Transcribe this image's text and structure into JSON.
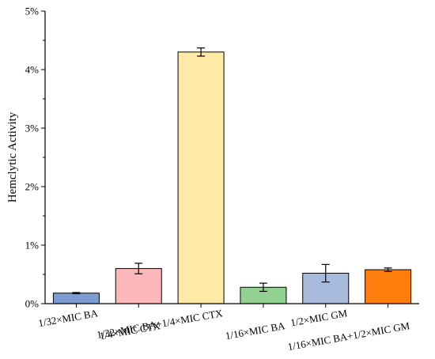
{
  "chart_data": {
    "type": "bar",
    "title": "",
    "xlabel": "",
    "ylabel": "Hemclytic Activity",
    "ylim": [
      0,
      5
    ],
    "yticks": [
      0,
      1,
      2,
      3,
      4,
      5
    ],
    "ytick_labels": [
      "0%",
      "1%",
      "2%",
      "3%",
      "4%",
      "5%"
    ],
    "categories": [
      "1/32×MIC BA",
      "1/4×MIC CTX",
      "1/32×MIC BA+1/4×MIC CTX",
      "1/16×MIC BA",
      "1/2×MIC GM",
      "1/16×MIC BA+1/2×MIC GM"
    ],
    "values": [
      0.18,
      0.6,
      4.3,
      0.28,
      0.52,
      0.58
    ],
    "errors": [
      0.01,
      0.09,
      0.07,
      0.07,
      0.15,
      0.03
    ],
    "colors": [
      "#7B9BD1",
      "#FFB8BA",
      "#FFEAA7",
      "#93D193",
      "#A9BBDD",
      "#FF7F0E"
    ],
    "grid": false,
    "legend": "none"
  }
}
